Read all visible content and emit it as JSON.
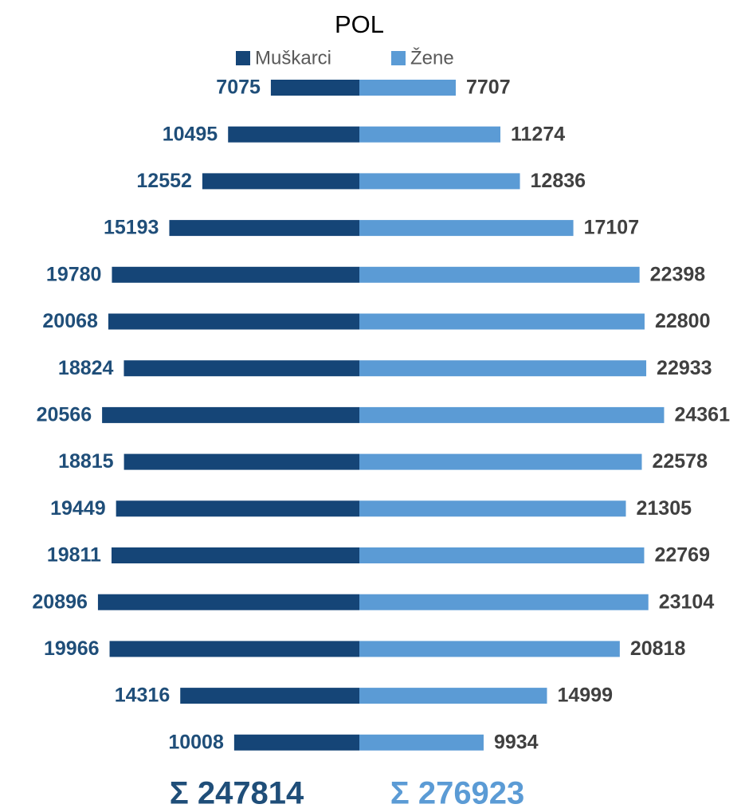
{
  "chart_data": {
    "type": "bar",
    "title": "POL",
    "categories": [
      null,
      null,
      null,
      null,
      null,
      null,
      null,
      null,
      null,
      null,
      null,
      null,
      null,
      null,
      null
    ],
    "series": [
      {
        "name": "Muškarci",
        "color": "#154577",
        "label_color": "#1f4e79",
        "values": [
          7075,
          10495,
          12552,
          15193,
          19780,
          20068,
          18824,
          20566,
          18815,
          19449,
          19811,
          20896,
          19966,
          14316,
          10008
        ]
      },
      {
        "name": "Žene",
        "color": "#5b9bd5",
        "label_color": "#404040",
        "values": [
          7707,
          11274,
          12836,
          17107,
          22398,
          22800,
          22933,
          24361,
          22578,
          21305,
          22769,
          23104,
          20818,
          14999,
          9934
        ]
      }
    ],
    "annotations": [
      "Σ 247814",
      "Σ 276923"
    ],
    "annotation_colors": [
      "#1f4e79",
      "#5b9bd5"
    ]
  }
}
